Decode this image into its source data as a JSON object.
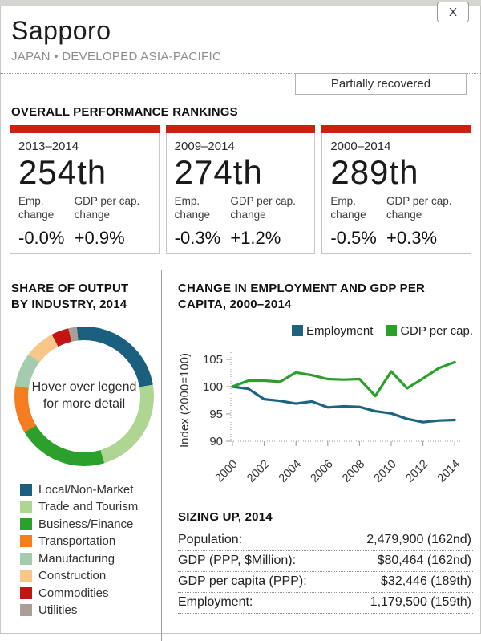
{
  "window": {
    "close_label": "X"
  },
  "header": {
    "title": "Sapporo",
    "subtitle": "JAPAN • DEVELOPED ASIA-PACIFIC",
    "status_badge": "Partially recovered"
  },
  "rankings": {
    "heading": "OVERALL PERFORMANCE RANKINGS",
    "accent_color": "#cb2110",
    "emp_label": "Emp. change",
    "gdp_label": "GDP per cap. change",
    "cards": [
      {
        "period": "2013–2014",
        "rank": "254th",
        "emp_change": "-0.0%",
        "gdp_change": "+0.9%"
      },
      {
        "period": "2009–2014",
        "rank": "274th",
        "emp_change": "-0.3%",
        "gdp_change": "+1.2%"
      },
      {
        "period": "2000–2014",
        "rank": "289th",
        "emp_change": "-0.5%",
        "gdp_change": "+0.3%"
      }
    ]
  },
  "sizing": {
    "heading": "SIZING UP, 2014",
    "rows": [
      {
        "label": "Population:",
        "value": "2,479,900 (162nd)"
      },
      {
        "label": "GDP (PPP, $Million):",
        "value": "$80,464 (162nd)"
      },
      {
        "label": "GDP per capita (PPP):",
        "value": "$32,446 (189th)"
      },
      {
        "label": "Employment:",
        "value": "1,179,500 (159th)"
      }
    ]
  },
  "chart_data": [
    {
      "type": "pie",
      "donut": true,
      "title": "SHARE OF OUTPUT BY INDUSTRY, 2014",
      "center_text": "Hover over legend for more detail",
      "start_angle_deg": -6,
      "legend_position": "bottom-left",
      "slices": [
        {
          "label": "Local/Non-Market",
          "value": 24,
          "color": "#1b5f7e"
        },
        {
          "label": "Trade and Tourism",
          "value": 23,
          "color": "#aed692"
        },
        {
          "label": "Business/Finance",
          "value": 21,
          "color": "#2ba12b"
        },
        {
          "label": "Transportation",
          "value": 11,
          "color": "#f57d1f"
        },
        {
          "label": "Manufacturing",
          "value": 8,
          "color": "#a5cbae"
        },
        {
          "label": "Construction",
          "value": 7,
          "color": "#f8c688"
        },
        {
          "label": "Commodities",
          "value": 4,
          "color": "#c41310"
        },
        {
          "label": "Utilities",
          "value": 2,
          "color": "#aa9e97"
        }
      ]
    },
    {
      "type": "line",
      "title": "CHANGE IN EMPLOYMENT AND GDP PER CAPITA, 2000–2014",
      "ylabel": "Index (2000=100)",
      "ylim": [
        90,
        107
      ],
      "yticks": [
        90,
        95,
        100,
        105
      ],
      "xticks": [
        2000,
        2002,
        2004,
        2006,
        2008,
        2010,
        2012,
        2014
      ],
      "x": [
        2000,
        2001,
        2002,
        2003,
        2004,
        2005,
        2006,
        2007,
        2008,
        2009,
        2010,
        2011,
        2012,
        2013,
        2014
      ],
      "grid": false,
      "legend_position": "top-right",
      "series": [
        {
          "name": "Employment",
          "color": "#1d6480",
          "values": [
            100,
            99.6,
            97.7,
            97.4,
            96.9,
            97.3,
            96.2,
            96.4,
            96.3,
            95.5,
            95.1,
            94.1,
            93.5,
            93.8,
            93.9
          ]
        },
        {
          "name": "GDP per cap.",
          "color": "#2aa02a",
          "values": [
            100,
            101.1,
            101.1,
            100.9,
            102.6,
            102.1,
            101.4,
            101.3,
            101.4,
            98.3,
            102.8,
            99.7,
            101.5,
            103.4,
            104.5
          ]
        }
      ]
    }
  ]
}
